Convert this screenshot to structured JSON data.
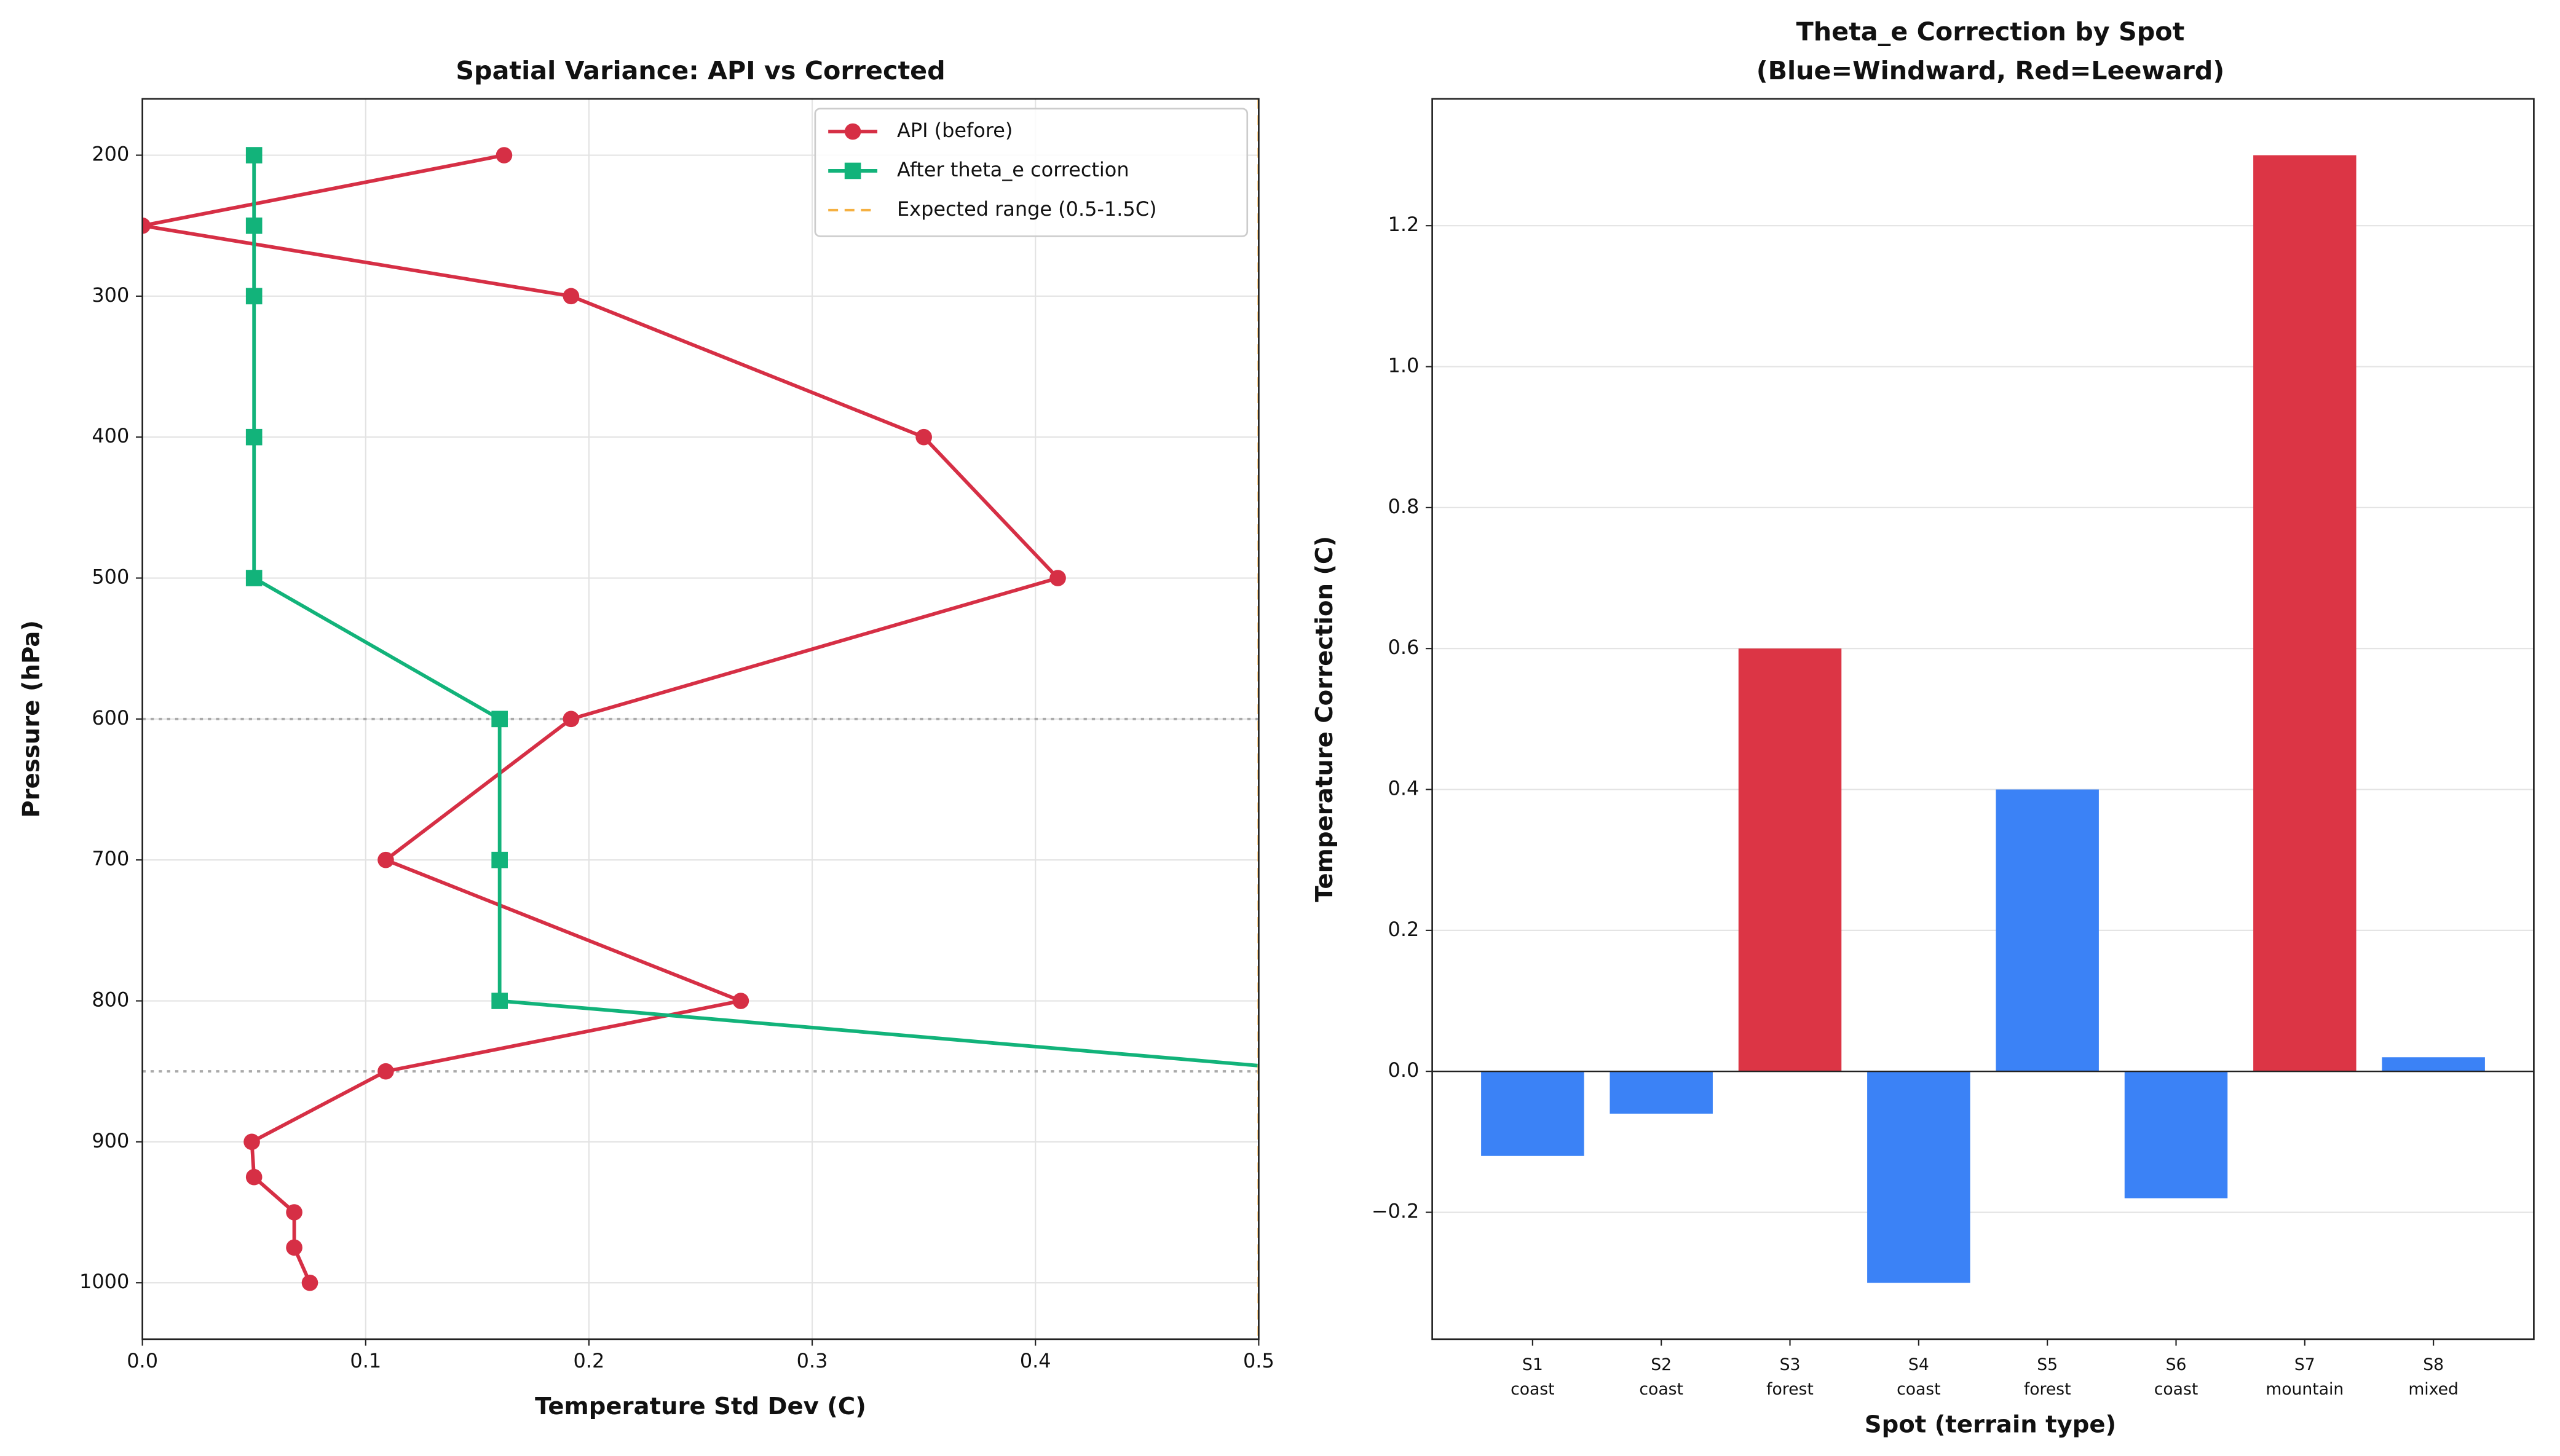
{
  "chart_data": [
    {
      "type": "line",
      "title": "Spatial Variance: API vs Corrected",
      "x_label": "Temperature Std Dev (C)",
      "y_label": "Pressure (hPa)",
      "xlim": [
        0,
        0.5
      ],
      "ylim": [
        160,
        1040
      ],
      "y_inverted": true,
      "xticks": [
        {
          "value": 0,
          "label": "0.0"
        },
        0.1,
        0.2,
        0.3,
        0.4,
        0.5
      ],
      "yticks": [
        200,
        300,
        400,
        500,
        600,
        700,
        800,
        900,
        1000
      ],
      "grid": true,
      "legend": "upper right",
      "reference_levels": [
        600,
        850
      ],
      "series": [
        {
          "name": "API (before)",
          "color": "#d62f45",
          "marker": "circle",
          "x": [
            0.162,
            0.0,
            0.192,
            0.35,
            0.41,
            0.192,
            0.109,
            0.268,
            0.109,
            0.049,
            0.05,
            0.068,
            0.068,
            0.075
          ],
          "y": [
            200,
            250,
            300,
            400,
            500,
            600,
            700,
            800,
            850,
            900,
            925,
            950,
            975,
            1000
          ]
        },
        {
          "name": "After theta_e correction",
          "color": "#12b37a",
          "marker": "square",
          "x": [
            0.05,
            0.05,
            0.05,
            0.05,
            0.05,
            0.16,
            0.16,
            0.16,
            0.53
          ],
          "y": [
            200,
            250,
            300,
            400,
            500,
            600,
            700,
            800,
            850
          ]
        },
        {
          "name": "Expected range (0.5-1.5C)",
          "color": "#f5b041",
          "style": "dashed",
          "x_lines": [
            0.5,
            1.5
          ]
        }
      ]
    },
    {
      "type": "bar",
      "title": "Theta_e Correction by Spot",
      "subtitle": "(Blue=Windward, Red=Leeward)",
      "x_label": "Spot (terrain type)",
      "y_label": "Temperature Correction (C)",
      "categories": [
        "S1",
        "S2",
        "S3",
        "S4",
        "S5",
        "S6",
        "S7",
        "S8"
      ],
      "terrain": [
        "coast",
        "coast",
        "forest",
        "coast",
        "forest",
        "coast",
        "mountain",
        "mixed"
      ],
      "values": [
        -0.12,
        -0.06,
        0.6,
        -0.3,
        0.4,
        -0.18,
        1.3,
        0.02
      ],
      "colors": [
        "#3b82f6",
        "#3b82f6",
        "#dc3545",
        "#3b82f6",
        "#3b82f6",
        "#3b82f6",
        "#dc3545",
        "#3b82f6"
      ],
      "ylim": [
        -0.38,
        1.38
      ],
      "yticks": [
        {
          "value": -0.2,
          "label": "−0.2"
        },
        {
          "value": 0,
          "label": "0.0"
        },
        {
          "value": 0.2,
          "label": "0.2"
        },
        {
          "value": 0.4,
          "label": "0.4"
        },
        {
          "value": 0.6,
          "label": "0.6"
        },
        {
          "value": 0.8,
          "label": "0.8"
        },
        {
          "value": 1.0,
          "label": "1.0"
        },
        {
          "value": 1.2,
          "label": "1.2"
        }
      ],
      "grid": true
    }
  ]
}
